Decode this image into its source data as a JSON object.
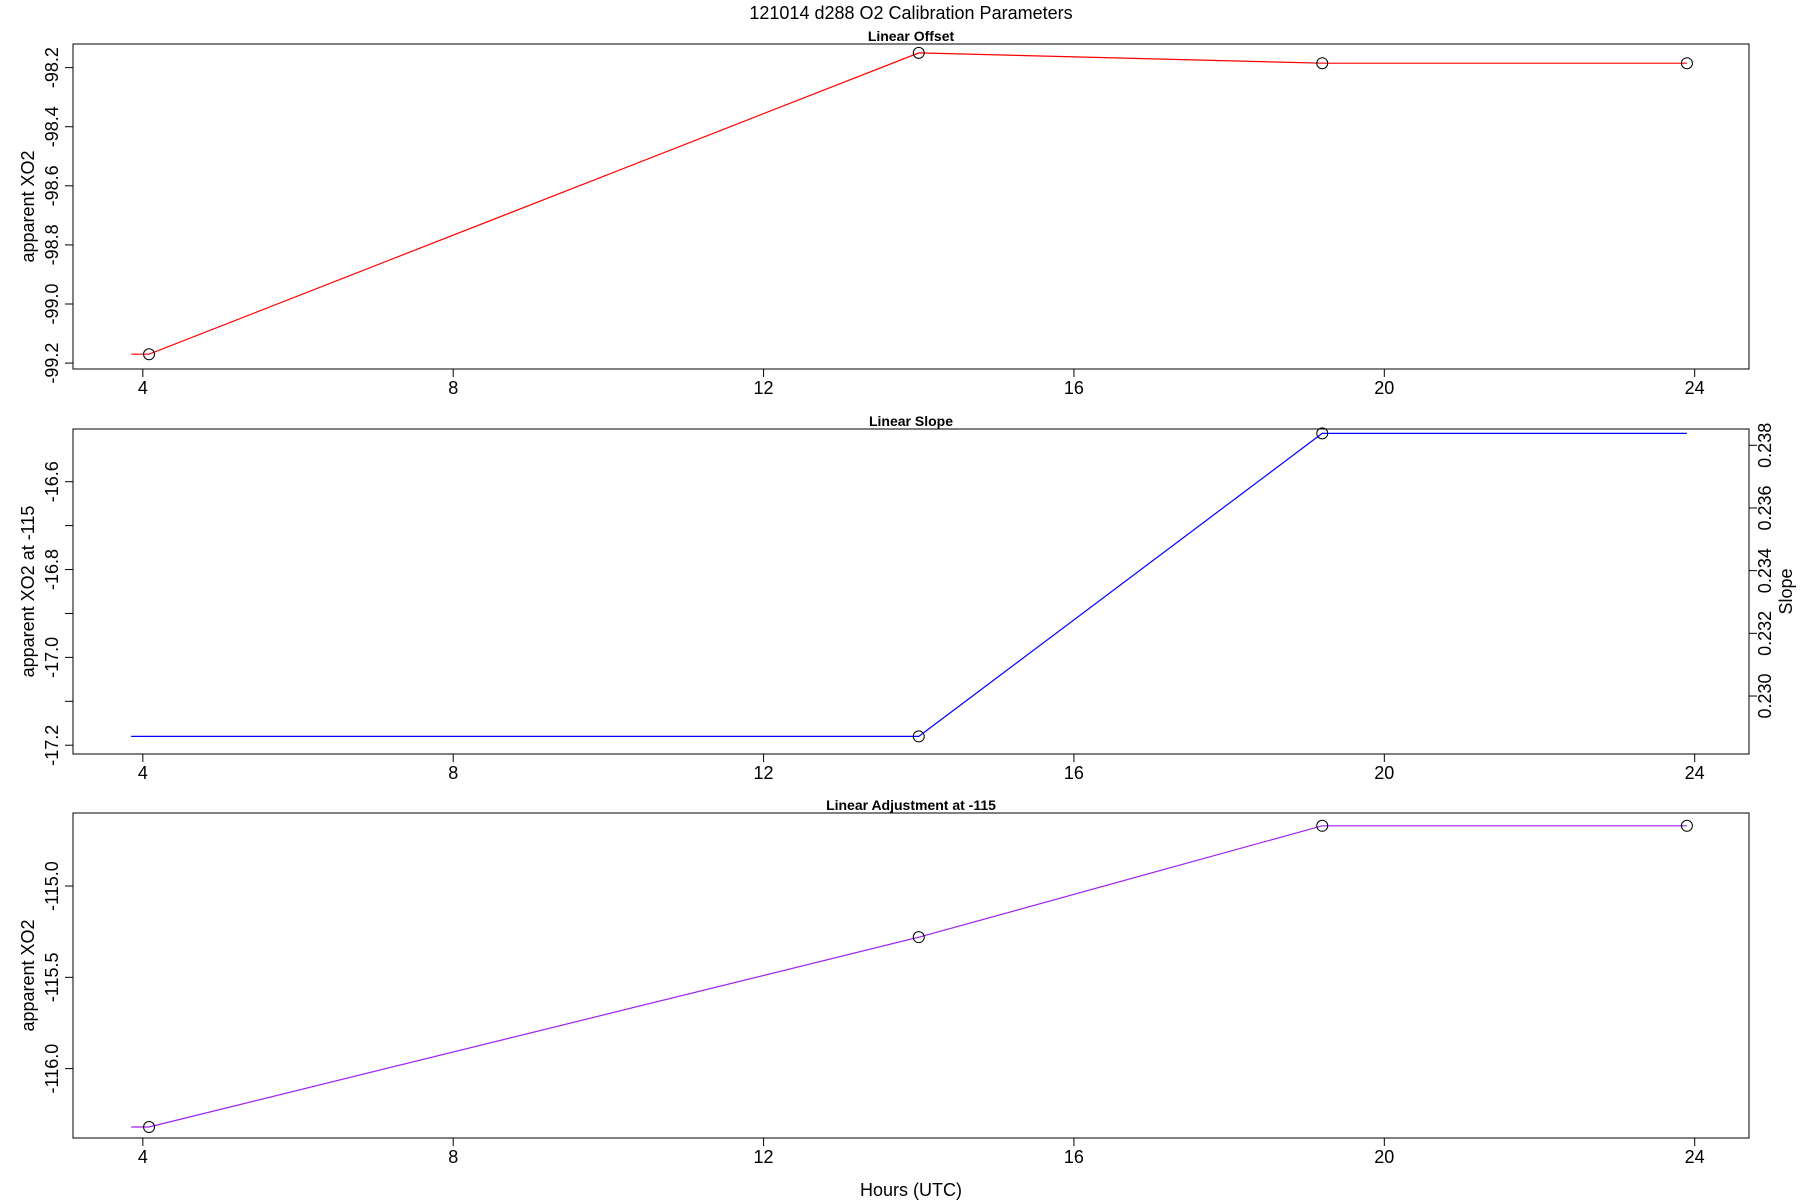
{
  "figure": {
    "title": "121014   d288   O2 Calibration Parameters",
    "xlabel": "Hours (UTC)"
  },
  "chart_data": [
    {
      "type": "line",
      "title": "Linear Offset",
      "xlabel": "",
      "ylabel": "apparent XO2",
      "xlim": [
        3.1,
        24.7
      ],
      "ylim": [
        -99.22,
        -98.12
      ],
      "xticks": [
        4,
        8,
        12,
        16,
        20,
        24
      ],
      "yticks": [
        -99.2,
        -99.0,
        -98.8,
        -98.6,
        -98.4,
        -98.2
      ],
      "ytick_labels": [
        "-99.2",
        "-99.0",
        "-98.8",
        "-98.6",
        "-98.4",
        "-98.2"
      ],
      "color": "#ff0000",
      "series": [
        {
          "x": [
            3.85,
            4.08,
            14.0,
            19.2,
            23.9
          ],
          "y": [
            -99.17,
            -99.17,
            -98.15,
            -98.185,
            -98.185
          ]
        }
      ],
      "points": {
        "x": [
          4.08,
          14.0,
          19.2,
          23.9
        ],
        "y": [
          -99.17,
          -98.15,
          -98.185,
          -98.185
        ]
      }
    },
    {
      "type": "line",
      "title": "Linear Slope",
      "xlabel": "",
      "ylabel": "apparent XO2 at -115",
      "ylabel_right": "Slope",
      "xlim": [
        3.1,
        24.7
      ],
      "ylim": [
        -17.22,
        -16.48
      ],
      "xticks": [
        4,
        8,
        12,
        16,
        20,
        24
      ],
      "yticks": [
        -17.2,
        -17.1,
        -17.0,
        -16.9,
        -16.8,
        -16.7,
        -16.6
      ],
      "ytick_labels": [
        "-17.2",
        "",
        "-17.0",
        "",
        "-16.8",
        "",
        "-16.6"
      ],
      "yticks_right": [
        0.23,
        0.232,
        0.234,
        0.236,
        0.238
      ],
      "ytick_right_labels": [
        "0.230",
        "0.232",
        "0.234",
        "0.236",
        "0.238"
      ],
      "ylim_right": [
        0.22815,
        0.23852
      ],
      "color": "#0000ff",
      "series": [
        {
          "x": [
            3.85,
            14.0,
            19.2,
            23.9
          ],
          "y": [
            -17.18,
            -17.18,
            -16.49,
            -16.49
          ]
        }
      ],
      "points": {
        "x": [
          14.0,
          19.2
        ],
        "y": [
          -17.18,
          -16.49
        ]
      }
    },
    {
      "type": "line",
      "title": "Linear Adjustment at -115",
      "xlabel": "",
      "ylabel": "apparent XO2",
      "xlim": [
        3.1,
        24.7
      ],
      "ylim": [
        -116.38,
        -114.6
      ],
      "xticks": [
        4,
        8,
        12,
        16,
        20,
        24
      ],
      "yticks": [
        -116.0,
        -115.5,
        -115.0
      ],
      "ytick_labels": [
        "-116.0",
        "-115.5",
        "-115.0"
      ],
      "color": "#a020f0",
      "series": [
        {
          "x": [
            3.85,
            4.08,
            14.0,
            19.2,
            23.9
          ],
          "y": [
            -116.32,
            -116.32,
            -115.28,
            -114.67,
            -114.67
          ]
        }
      ],
      "points": {
        "x": [
          4.08,
          14.0,
          19.2,
          23.9
        ],
        "y": [
          -116.32,
          -115.28,
          -114.67,
          -114.67
        ]
      }
    }
  ]
}
